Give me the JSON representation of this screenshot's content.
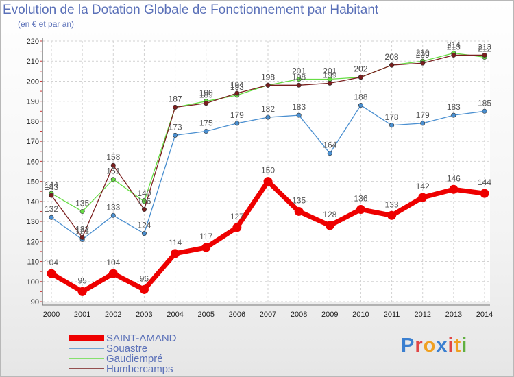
{
  "title": "Evolution de la Dotation Globale de Fonctionnement par Habitant",
  "subtitle": "(en € et par an)",
  "logo": {
    "text": "Proxiti",
    "colors": [
      "#3a7fd0",
      "#e04545",
      "#f0a020",
      "#3a7fd0",
      "#e04545",
      "#f0a020",
      "#60b040"
    ]
  },
  "chart_data": {
    "type": "line",
    "title": "Evolution de la Dotation Globale de Fonctionnement par Habitant",
    "subtitle": "(en € et par an)",
    "xlabel": "",
    "ylabel": "",
    "x": [
      "2000",
      "2001",
      "2002",
      "2003",
      "2004",
      "2005",
      "2006",
      "2007",
      "2008",
      "2009",
      "2010",
      "2011",
      "2012",
      "2013",
      "2014"
    ],
    "yticks": [
      90,
      100,
      110,
      120,
      130,
      140,
      150,
      160,
      170,
      180,
      190,
      200,
      210,
      220
    ],
    "ylim": [
      90,
      220
    ],
    "grid": true,
    "legend_position": "bottom-left",
    "series": [
      {
        "name": "SAINT-AMAND",
        "color": "#ee0000",
        "values": [
          104,
          95,
          104,
          96,
          114,
          117,
          127,
          150,
          135,
          128,
          136,
          133,
          142,
          146,
          144
        ]
      },
      {
        "name": "Souastre",
        "color": "#4a8fd0",
        "values": [
          132,
          121,
          133,
          124,
          173,
          175,
          179,
          182,
          183,
          164,
          188,
          178,
          179,
          183,
          185
        ]
      },
      {
        "name": "Gaudiempré",
        "color": "#66dd44",
        "values": [
          144,
          135,
          151,
          140,
          187,
          190,
          193,
          198,
          201,
          201,
          202,
          208,
          210,
          214,
          212
        ]
      },
      {
        "name": "Humbercamps",
        "color": "#7a1e1e",
        "values": [
          143,
          122,
          158,
          136,
          187,
          189,
          194,
          198,
          198,
          199,
          202,
          208,
          209,
          213,
          213
        ]
      }
    ]
  }
}
